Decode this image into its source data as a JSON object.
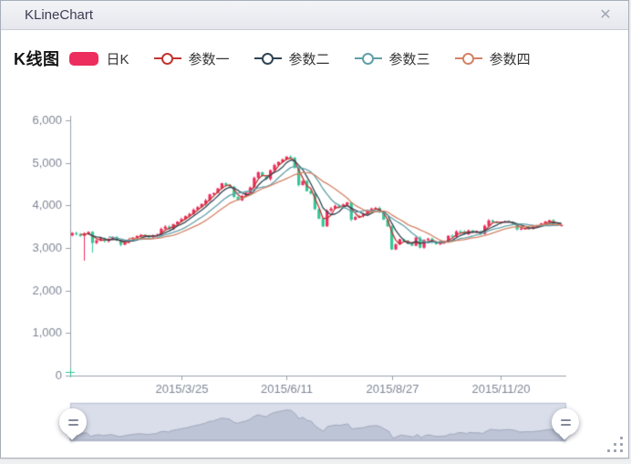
{
  "window": {
    "title": "KLineChart"
  },
  "icons": {
    "close": "✕"
  },
  "legend": {
    "title": "K线图",
    "candle_label": "日K",
    "items": [
      {
        "label": "参数一",
        "color": "#c23531"
      },
      {
        "label": "参数二",
        "color": "#2f4554"
      },
      {
        "label": "参数三",
        "color": "#61a0a8"
      },
      {
        "label": "参数四",
        "color": "#d48265"
      }
    ]
  },
  "chart_data": {
    "type": "candlestick",
    "title": "K线图",
    "series_name": "日K",
    "up_color": "#ec2d5e",
    "down_color": "#33c695",
    "axis_color": "#9aa0ac",
    "label_color": "#7e8695",
    "grid": false,
    "legend_position": "top",
    "y_axis": {
      "min": 0,
      "max": 6000,
      "tick_labels": [
        "0",
        "1,000",
        "2,000",
        "3,000",
        "4,000",
        "5,000",
        "6,000"
      ]
    },
    "x_axis": {
      "tick_labels": [
        "2015/3/25",
        "2015/6/11",
        "2015/8/27",
        "2015/11/20"
      ],
      "tick_indices": [
        27,
        53,
        79,
        106
      ]
    },
    "first_open": 3295,
    "closes": [
      3350,
      3320,
      3285,
      3345,
      3380,
      3116,
      3180,
      3235,
      3160,
      3200,
      3250,
      3170,
      3075,
      3130,
      3200,
      3246,
      3280,
      3310,
      3280,
      3250,
      3290,
      3310,
      3450,
      3502,
      3440,
      3560,
      3620,
      3680,
      3748,
      3800,
      3900,
      3960,
      4034,
      4120,
      4260,
      4290,
      4400,
      4520,
      4480,
      4440,
      4200,
      4120,
      4220,
      4300,
      4420,
      4650,
      4780,
      4690,
      4620,
      4828,
      4950,
      5023,
      5080,
      5146,
      5120,
      4890,
      4478,
      4576,
      4335,
      4277,
      3912,
      3687,
      3507,
      3877,
      3928,
      3992,
      3950,
      4020,
      4071,
      3663,
      3728,
      3750,
      3795,
      3886,
      3925,
      3940,
      3850,
      3664,
      3508,
      2965,
      3083,
      3205,
      3160,
      3110,
      3052,
      3243,
      3005,
      3186,
      3218,
      3132,
      3092,
      3116,
      3143,
      3287,
      3262,
      3391,
      3386,
      3320,
      3413,
      3375,
      3383,
      3325,
      3522,
      3647,
      3610,
      3581,
      3607,
      3630,
      3610,
      3560,
      3436,
      3456,
      3470,
      3455,
      3503,
      3520,
      3580,
      3620,
      3651,
      3570,
      3533,
      3539
    ],
    "spikes": [
      {
        "i": 3,
        "low": 2700
      },
      {
        "i": 5,
        "low": 2890
      }
    ],
    "ma_series": [
      {
        "name": "参数一",
        "color": "#c23531",
        "period": 3
      },
      {
        "name": "参数二",
        "color": "#2f4554",
        "period": 5
      },
      {
        "name": "参数三",
        "color": "#61a0a8",
        "period": 10
      },
      {
        "name": "参数四",
        "color": "#d48265",
        "period": 15
      }
    ],
    "datazoom": {
      "start": "0%",
      "end": "100%"
    }
  }
}
